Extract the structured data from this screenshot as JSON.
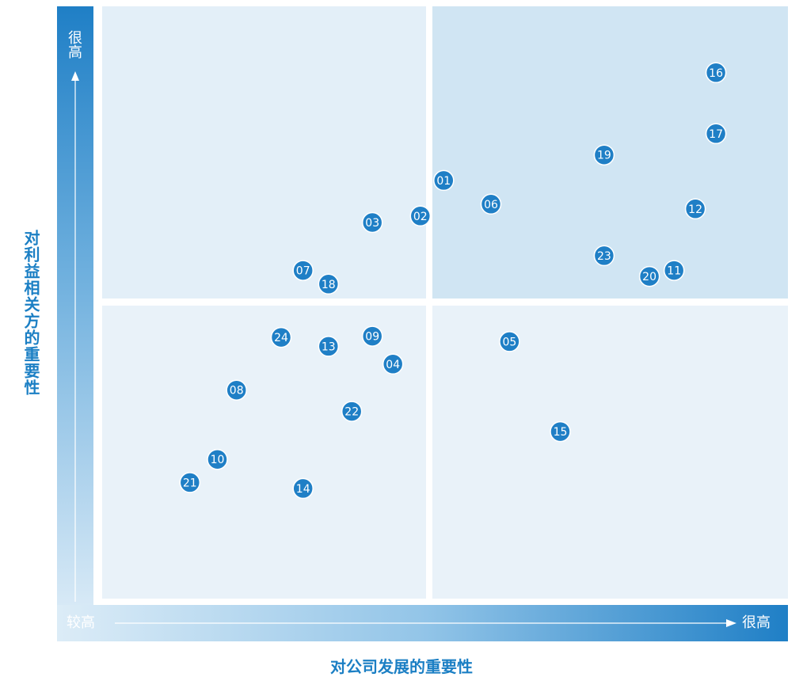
{
  "chart_data": {
    "type": "scatter",
    "title": "",
    "xlabel": "对公司发展的重要性",
    "ylabel": "对利益相关方的重要性",
    "x_axis_low": "较高",
    "x_axis_high": "很高",
    "y_axis_high": "很高",
    "xlim": [
      0,
      100
    ],
    "ylim": [
      0,
      100
    ],
    "quadrant_split": {
      "x": 47.6,
      "y": 50
    },
    "grid": false,
    "marker_color": "#1f7fc6",
    "points": [
      {
        "label": "01",
        "x": 49.8,
        "y": 70.6
      },
      {
        "label": "02",
        "x": 46.4,
        "y": 64.6
      },
      {
        "label": "03",
        "x": 39.4,
        "y": 63.5
      },
      {
        "label": "04",
        "x": 42.4,
        "y": 39.6
      },
      {
        "label": "05",
        "x": 59.4,
        "y": 43.4
      },
      {
        "label": "06",
        "x": 56.7,
        "y": 66.6
      },
      {
        "label": "07",
        "x": 29.3,
        "y": 55.4
      },
      {
        "label": "08",
        "x": 19.6,
        "y": 35.2
      },
      {
        "label": "09",
        "x": 39.4,
        "y": 44.3
      },
      {
        "label": "10",
        "x": 16.8,
        "y": 23.5
      },
      {
        "label": "11",
        "x": 83.4,
        "y": 55.4
      },
      {
        "label": "12",
        "x": 86.5,
        "y": 65.8
      },
      {
        "label": "13",
        "x": 33.0,
        "y": 42.6
      },
      {
        "label": "14",
        "x": 29.3,
        "y": 18.6
      },
      {
        "label": "15",
        "x": 66.8,
        "y": 28.2
      },
      {
        "label": "16",
        "x": 89.5,
        "y": 88.8
      },
      {
        "label": "17",
        "x": 89.5,
        "y": 78.5
      },
      {
        "label": "18",
        "x": 33.0,
        "y": 53.1
      },
      {
        "label": "19",
        "x": 73.2,
        "y": 74.9
      },
      {
        "label": "20",
        "x": 79.8,
        "y": 54.4
      },
      {
        "label": "21",
        "x": 12.8,
        "y": 19.6
      },
      {
        "label": "22",
        "x": 36.4,
        "y": 31.6
      },
      {
        "label": "23",
        "x": 73.2,
        "y": 57.9
      },
      {
        "label": "24",
        "x": 26.1,
        "y": 44.1
      }
    ]
  }
}
